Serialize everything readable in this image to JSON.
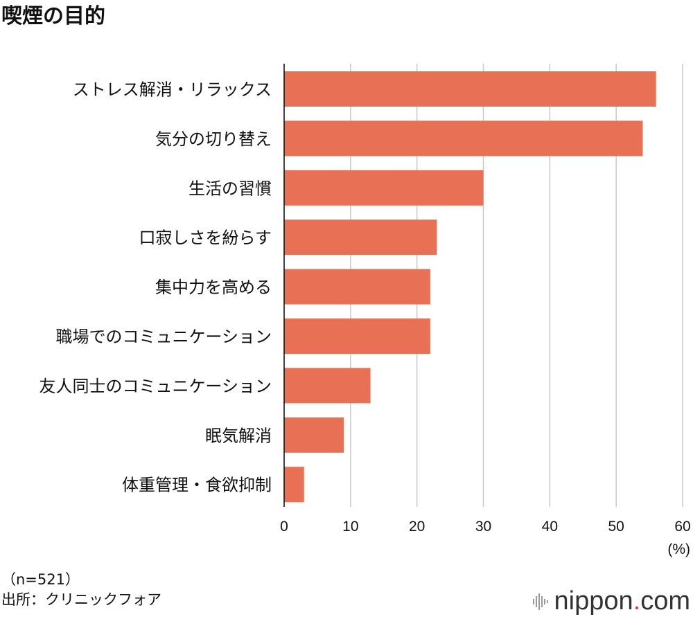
{
  "title": "喫煙の目的",
  "chart_data": {
    "type": "bar",
    "orientation": "horizontal",
    "categories": [
      "ストレス解消・リラックス",
      "気分の切り替え",
      "生活の習慣",
      "口寂しさを紛らす",
      "集中力を高める",
      "職場でのコミュニケーション",
      "友人同士のコミュニケーション",
      "眠気解消",
      "体重管理・食欲抑制"
    ],
    "values": [
      56,
      54,
      30,
      23,
      22,
      22,
      13,
      9,
      3
    ],
    "xlim": [
      0,
      60
    ],
    "xticks": [
      0,
      10,
      20,
      30,
      40,
      50,
      60
    ],
    "xticklabels": [
      "0",
      "10",
      "20",
      "30",
      "40",
      "50",
      "60"
    ],
    "unit": "(%)",
    "grid": true,
    "bar_color": "#e87054",
    "grid_color": "#c8c8c8"
  },
  "footer": {
    "sample": "（n=521）",
    "source": "出所：クリニックフォア"
  },
  "logo": {
    "name": "nippon",
    "dot": ".",
    "suffix": "com"
  }
}
